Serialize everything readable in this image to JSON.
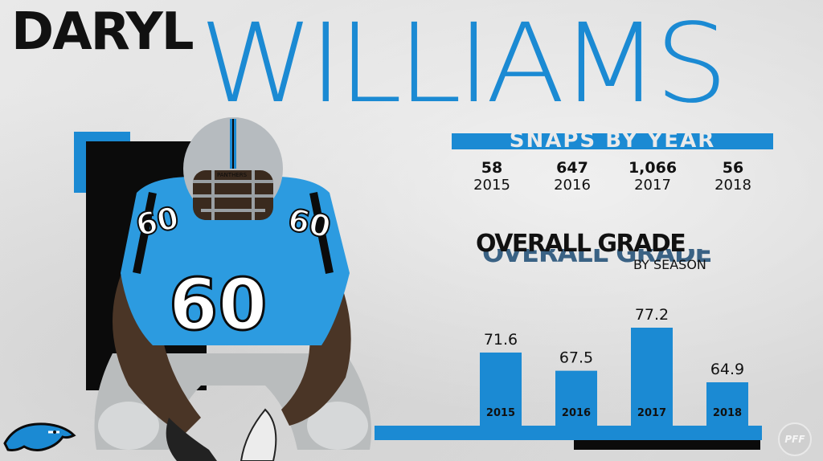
{
  "player": {
    "first_name": "DARYL",
    "last_name": "WILLIAMS",
    "jersey_number": "60",
    "helmet_text": "PANTHERS"
  },
  "snaps": {
    "title": "SNAPS BY YEAR",
    "items": [
      {
        "value": "58",
        "year": "2015"
      },
      {
        "value": "647",
        "year": "2016"
      },
      {
        "value": "1,066",
        "year": "2017"
      },
      {
        "value": "56",
        "year": "2018"
      }
    ]
  },
  "grades": {
    "title": "OVERALL GRADE",
    "subtitle": "BY SEASON"
  },
  "chart_data": {
    "type": "bar",
    "title": "OVERALL GRADE",
    "subtitle": "BY SEASON",
    "categories": [
      "2015",
      "2016",
      "2017",
      "2018"
    ],
    "values": [
      71.6,
      67.5,
      77.2,
      64.9
    ],
    "value_labels": [
      "71.6",
      "67.5",
      "77.2",
      "64.9"
    ],
    "bar_color": "#1b8ad3",
    "grid": false
  },
  "branding": {
    "pff_logo_text": "PFF",
    "team_logo": "panthers-logo-icon"
  },
  "colors": {
    "accent": "#1b8ad3",
    "dark": "#111111",
    "background": "#e4e4e4"
  }
}
